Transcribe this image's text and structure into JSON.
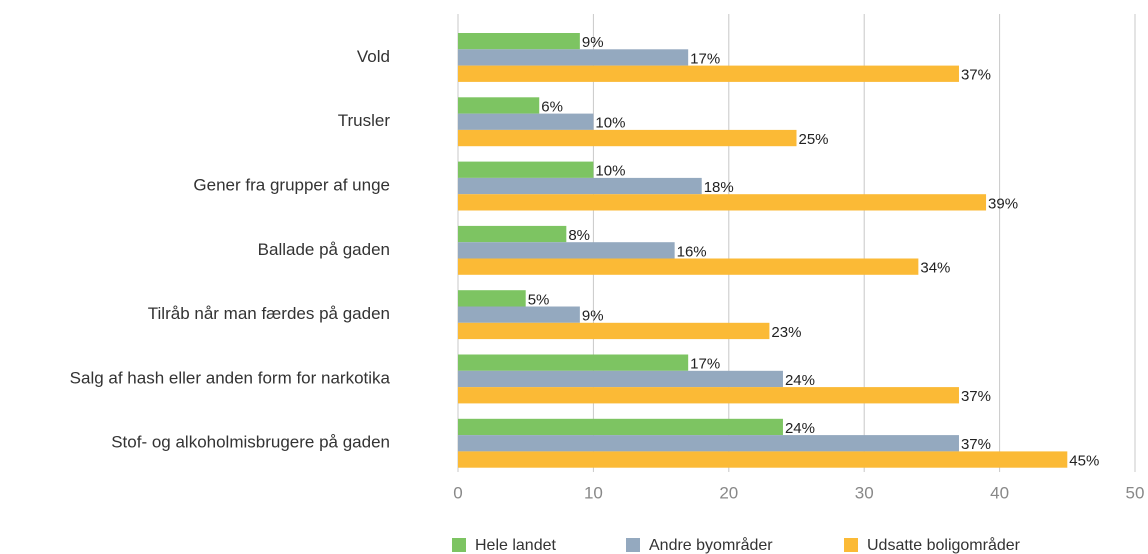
{
  "chart_data": {
    "type": "bar",
    "orientation": "horizontal",
    "categories": [
      "Vold",
      "Trusler",
      "Gener fra grupper af unge",
      "Ballade på gaden",
      "Tilråb når man færdes på gaden",
      "Salg af hash eller anden form for narkotika",
      "Stof- og alkoholmisbrugere på gaden"
    ],
    "series": [
      {
        "name": "Hele landet",
        "color": "#7dc462",
        "values": [
          9,
          6,
          10,
          8,
          5,
          17,
          24
        ],
        "value_labels": [
          "9%",
          "6%",
          "10%",
          "8%",
          "5%",
          "17%",
          "24%"
        ]
      },
      {
        "name": "Andre byområder",
        "color": "#94a9bf",
        "values": [
          17,
          10,
          18,
          16,
          9,
          24,
          37
        ],
        "value_labels": [
          "17%",
          "10%",
          "18%",
          "16%",
          "9%",
          "24%",
          "37%"
        ]
      },
      {
        "name": "Udsatte boligområder",
        "color": "#fbba36",
        "values": [
          37,
          25,
          39,
          34,
          23,
          37,
          45
        ],
        "value_labels": [
          "37%",
          "25%",
          "39%",
          "34%",
          "23%",
          "37%",
          "45%"
        ]
      }
    ],
    "xlim": [
      0,
      50
    ],
    "xticks": [
      0,
      10,
      20,
      30,
      40,
      50
    ],
    "grid": true,
    "legend": "bottom"
  }
}
